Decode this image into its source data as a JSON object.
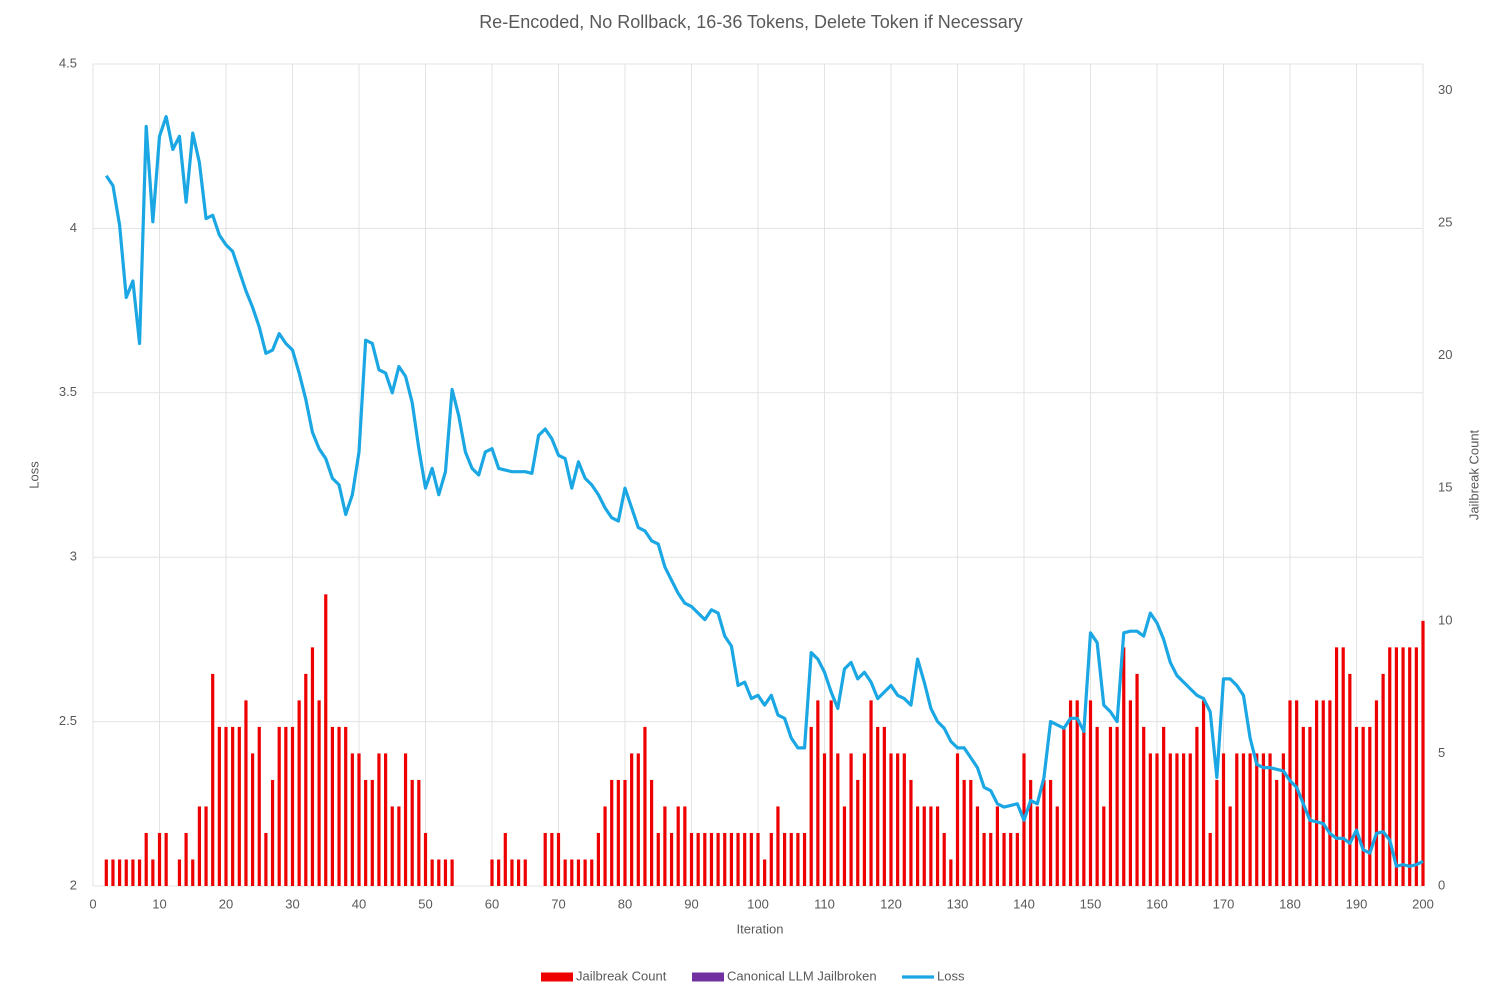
{
  "chart_data": {
    "type": "bar",
    "title": "Re-Encoded, No Rollback, 16-36 Tokens, Delete Token if Necessary",
    "xlabel": "Iteration",
    "ylabel": "Loss",
    "y2label": "Jailbreak Count",
    "xlim": [
      0,
      200
    ],
    "xticks": [
      0,
      10,
      20,
      30,
      40,
      50,
      60,
      70,
      80,
      90,
      100,
      110,
      120,
      130,
      140,
      150,
      160,
      170,
      180,
      190,
      200
    ],
    "ylim": [
      2,
      4.5
    ],
    "yticks": [
      2,
      2.5,
      3,
      3.5,
      4,
      4.5
    ],
    "y2lim": [
      0,
      31
    ],
    "y2ticks": [
      0,
      5,
      10,
      15,
      20,
      25,
      30
    ],
    "grid": true,
    "legend": "bottom",
    "x": [
      2,
      3,
      4,
      5,
      6,
      7,
      8,
      9,
      10,
      11,
      12,
      13,
      14,
      15,
      16,
      17,
      18,
      19,
      20,
      21,
      22,
      23,
      24,
      25,
      26,
      27,
      28,
      29,
      30,
      31,
      32,
      33,
      34,
      35,
      36,
      37,
      38,
      39,
      40,
      41,
      42,
      43,
      44,
      45,
      46,
      47,
      48,
      49,
      50,
      51,
      52,
      53,
      54,
      55,
      56,
      57,
      58,
      59,
      60,
      61,
      62,
      63,
      64,
      65,
      66,
      67,
      68,
      69,
      70,
      71,
      72,
      73,
      74,
      75,
      76,
      77,
      78,
      79,
      80,
      81,
      82,
      83,
      84,
      85,
      86,
      87,
      88,
      89,
      90,
      91,
      92,
      93,
      94,
      95,
      96,
      97,
      98,
      99,
      100,
      101,
      102,
      103,
      104,
      105,
      106,
      107,
      108,
      109,
      110,
      111,
      112,
      113,
      114,
      115,
      116,
      117,
      118,
      119,
      120,
      121,
      122,
      123,
      124,
      125,
      126,
      127,
      128,
      129,
      130,
      131,
      132,
      133,
      134,
      135,
      136,
      137,
      138,
      139,
      140,
      141,
      142,
      143,
      144,
      145,
      146,
      147,
      148,
      149,
      150,
      151,
      152,
      153,
      154,
      155,
      156,
      157,
      158,
      159,
      160,
      161,
      162,
      163,
      164,
      165,
      166,
      167,
      168,
      169,
      170,
      171,
      172,
      173,
      174,
      175,
      176,
      177,
      178,
      179,
      180,
      181,
      182,
      183,
      184,
      185,
      186,
      187,
      188,
      189,
      190,
      191,
      192,
      193,
      194,
      195,
      196,
      197,
      198,
      199,
      200
    ],
    "series": [
      {
        "name": "Jailbreak Count",
        "type": "bar",
        "axis": "y2",
        "color": "#ee0000",
        "values": [
          1,
          1,
          1,
          1,
          1,
          1,
          2,
          1,
          2,
          2,
          0,
          1,
          2,
          1,
          3,
          3,
          8,
          6,
          6,
          6,
          6,
          7,
          5,
          6,
          2,
          4,
          6,
          6,
          6,
          7,
          8,
          9,
          7,
          11,
          6,
          6,
          6,
          5,
          5,
          4,
          4,
          5,
          5,
          3,
          3,
          5,
          4,
          4,
          2,
          1,
          1,
          1,
          1,
          0,
          0,
          0,
          0,
          0,
          1,
          1,
          2,
          1,
          1,
          1,
          0,
          0,
          2,
          2,
          2,
          1,
          1,
          1,
          1,
          1,
          2,
          3,
          4,
          4,
          4,
          5,
          5,
          6,
          4,
          2,
          3,
          2,
          3,
          3,
          2,
          2,
          2,
          2,
          2,
          2,
          2,
          2,
          2,
          2,
          2,
          1,
          2,
          3,
          2,
          2,
          2,
          2,
          6,
          7,
          5,
          7,
          5,
          3,
          5,
          4,
          5,
          7,
          6,
          6,
          5,
          5,
          5,
          4,
          3,
          3,
          3,
          3,
          2,
          1,
          5,
          4,
          4,
          3,
          2,
          2,
          3,
          2,
          2,
          2,
          5,
          4,
          3,
          4,
          4,
          3,
          6,
          7,
          7,
          6,
          7,
          6,
          3,
          6,
          6,
          9,
          7,
          8,
          6,
          5,
          5,
          6,
          5,
          5,
          5,
          5,
          6,
          7,
          2,
          4,
          5,
          3,
          5,
          5,
          5,
          5,
          5,
          5,
          4,
          5,
          7,
          7,
          6,
          6,
          7,
          7,
          7,
          9,
          9,
          8,
          6,
          6,
          6,
          7,
          8,
          9,
          9,
          9,
          9,
          9,
          10
        ]
      },
      {
        "name": "Canonical LLM Jailbroken",
        "type": "bar",
        "axis": "y2",
        "color": "#7030a0",
        "values": [
          null,
          null,
          null,
          null,
          null,
          null,
          null,
          null,
          null,
          null,
          null,
          null,
          null,
          null,
          null,
          null,
          null,
          null,
          null,
          null,
          null,
          null,
          null,
          null,
          null,
          null,
          null,
          null,
          null,
          null,
          null,
          null,
          null,
          null,
          null,
          null,
          null,
          null,
          null,
          null,
          null,
          null,
          null,
          null,
          null,
          null,
          null,
          null,
          null,
          null,
          null,
          null,
          null,
          null,
          null,
          null,
          null,
          null,
          null,
          null,
          null,
          null,
          null,
          null,
          null,
          null,
          null,
          null,
          null,
          null,
          null,
          null,
          null,
          null,
          null,
          null,
          null,
          null,
          null,
          null,
          null,
          null,
          null,
          null,
          null,
          null,
          null,
          null,
          null,
          null,
          null,
          null,
          null,
          null,
          null,
          null,
          null,
          null,
          null,
          null,
          null,
          null,
          null,
          null,
          null,
          null,
          null,
          null,
          null,
          null,
          null,
          null,
          null,
          null,
          null,
          null,
          null,
          null,
          null,
          null,
          null,
          null,
          null,
          null,
          null,
          null,
          null,
          null,
          null,
          null,
          null,
          null,
          null,
          null,
          null,
          null,
          null,
          null,
          null,
          null,
          null,
          null,
          null,
          null,
          null,
          null,
          null,
          null,
          null,
          null,
          null,
          null,
          null,
          null,
          null,
          null,
          null,
          null,
          null,
          null,
          null,
          null,
          null,
          null,
          null,
          null,
          null,
          null,
          null,
          null,
          null,
          null,
          null,
          null,
          null,
          null,
          null,
          null,
          null,
          null,
          null,
          null,
          null,
          null,
          null,
          null,
          null,
          null,
          null,
          null,
          null,
          null,
          null,
          null,
          null,
          null,
          null,
          null,
          null
        ]
      },
      {
        "name": "Loss",
        "type": "line",
        "axis": "y",
        "color": "#1aa7e3",
        "values": [
          4.16,
          4.13,
          4.01,
          3.79,
          3.84,
          3.65,
          4.31,
          4.02,
          4.28,
          4.34,
          4.24,
          4.28,
          4.08,
          4.29,
          4.2,
          4.03,
          4.04,
          3.98,
          3.95,
          3.93,
          3.87,
          3.81,
          3.76,
          3.7,
          3.62,
          3.63,
          3.68,
          3.65,
          3.63,
          3.56,
          3.48,
          3.38,
          3.33,
          3.3,
          3.24,
          3.22,
          3.13,
          3.19,
          3.32,
          3.66,
          3.65,
          3.57,
          3.56,
          3.5,
          3.58,
          3.55,
          3.47,
          3.33,
          3.21,
          3.27,
          3.19,
          3.26,
          3.51,
          3.43,
          3.32,
          3.27,
          3.25,
          3.32,
          3.33,
          3.27,
          3.265,
          3.26,
          3.26,
          3.26,
          3.255,
          3.37,
          3.39,
          3.36,
          3.31,
          3.3,
          3.21,
          3.29,
          3.24,
          3.22,
          3.19,
          3.15,
          3.12,
          3.11,
          3.21,
          3.15,
          3.09,
          3.08,
          3.05,
          3.04,
          2.97,
          2.93,
          2.89,
          2.86,
          2.85,
          2.83,
          2.81,
          2.84,
          2.83,
          2.76,
          2.73,
          2.61,
          2.62,
          2.57,
          2.58,
          2.55,
          2.58,
          2.52,
          2.51,
          2.45,
          2.42,
          2.42,
          2.71,
          2.69,
          2.65,
          2.59,
          2.54,
          2.66,
          2.68,
          2.63,
          2.65,
          2.62,
          2.57,
          2.59,
          2.61,
          2.58,
          2.57,
          2.55,
          2.69,
          2.62,
          2.54,
          2.5,
          2.48,
          2.44,
          2.42,
          2.42,
          2.39,
          2.36,
          2.3,
          2.29,
          2.25,
          2.24,
          2.245,
          2.25,
          2.2,
          2.26,
          2.25,
          2.33,
          2.5,
          2.49,
          2.48,
          2.51,
          2.51,
          2.47,
          2.77,
          2.74,
          2.55,
          2.53,
          2.5,
          2.77,
          2.775,
          2.775,
          2.76,
          2.83,
          2.8,
          2.75,
          2.68,
          2.64,
          2.62,
          2.6,
          2.58,
          2.57,
          2.53,
          2.33,
          2.63,
          2.63,
          2.61,
          2.58,
          2.45,
          2.37,
          2.36,
          2.36,
          2.355,
          2.35,
          2.32,
          2.3,
          2.25,
          2.2,
          2.195,
          2.19,
          2.16,
          2.145,
          2.145,
          2.13,
          2.17,
          2.11,
          2.1,
          2.16,
          2.165,
          2.14,
          2.06,
          2.065,
          2.06,
          2.065,
          2.075
        ]
      }
    ]
  }
}
